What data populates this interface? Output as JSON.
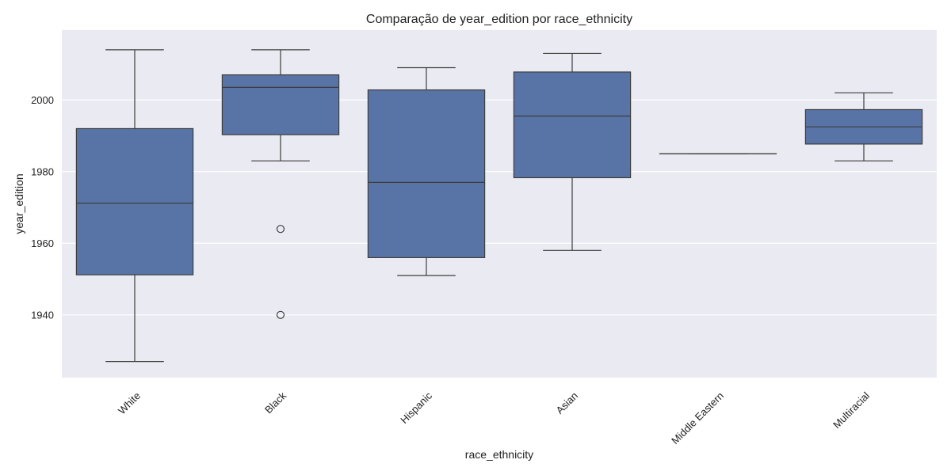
{
  "chart_data": {
    "type": "box",
    "title": "Comparação de year_edition por race_ethnicity",
    "xlabel": "race_ethnicity",
    "ylabel": "year_edition",
    "ylim": [
      1922.5,
      2019.5
    ],
    "yticks": [
      1940,
      1960,
      1980,
      2000
    ],
    "grid": true,
    "categories": [
      "White",
      "Black",
      "Hispanic",
      "Asian",
      "Middle Eastern",
      "Multiracial"
    ],
    "boxes": [
      {
        "category": "White",
        "whisker_low": 1927,
        "q1": 1951.2,
        "median": 1971.2,
        "q3": 1992,
        "whisker_high": 2014,
        "outliers": []
      },
      {
        "category": "Black",
        "whisker_low": 1983,
        "q1": 1990.3,
        "median": 2003.5,
        "q3": 2007,
        "whisker_high": 2014,
        "outliers": [
          1964,
          1940
        ]
      },
      {
        "category": "Hispanic",
        "whisker_low": 1951,
        "q1": 1956,
        "median": 1977,
        "q3": 2002.8,
        "whisker_high": 2009,
        "outliers": []
      },
      {
        "category": "Asian",
        "whisker_low": 1958,
        "q1": 1978.3,
        "median": 1995.5,
        "q3": 2007.8,
        "whisker_high": 2013,
        "outliers": []
      },
      {
        "category": "Middle Eastern",
        "whisker_low": 1985,
        "q1": 1985,
        "median": 1985,
        "q3": 1985,
        "whisker_high": 1985,
        "outliers": []
      },
      {
        "category": "Multiracial",
        "whisker_low": 1983,
        "q1": 1987.7,
        "median": 1992.5,
        "q3": 1997.3,
        "whisker_high": 2002,
        "outliers": []
      }
    ],
    "colors": {
      "box_fill": "#5874a6",
      "line": "#3d3d3d",
      "plot_background": "#eaeaf2",
      "grid": "#ffffff"
    }
  }
}
